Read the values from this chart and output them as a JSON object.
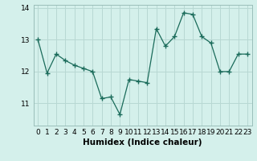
{
  "x": [
    0,
    1,
    2,
    3,
    4,
    5,
    6,
    7,
    8,
    9,
    10,
    11,
    12,
    13,
    14,
    15,
    16,
    17,
    18,
    19,
    20,
    21,
    22,
    23
  ],
  "y": [
    13.0,
    11.95,
    12.55,
    12.35,
    12.2,
    12.1,
    12.0,
    11.15,
    11.2,
    10.65,
    11.75,
    11.7,
    11.65,
    13.35,
    12.8,
    13.1,
    13.85,
    13.8,
    13.1,
    12.9,
    12.0,
    12.0,
    12.55,
    12.55
  ],
  "line_color": "#1a6b5a",
  "marker": "+",
  "marker_size": 4,
  "marker_lw": 1.0,
  "bg_color": "#d4f0eb",
  "grid_color": "#b8d8d3",
  "xlabel": "Humidex (Indice chaleur)",
  "ylim": [
    10.3,
    14.1
  ],
  "xlim": [
    -0.5,
    23.5
  ],
  "yticks": [
    11,
    12,
    13,
    14
  ],
  "xticks": [
    0,
    1,
    2,
    3,
    4,
    5,
    6,
    7,
    8,
    9,
    10,
    11,
    12,
    13,
    14,
    15,
    16,
    17,
    18,
    19,
    20,
    21,
    22,
    23
  ],
  "xlabel_fontsize": 7.5,
  "tick_fontsize": 6.5,
  "linewidth": 0.9
}
